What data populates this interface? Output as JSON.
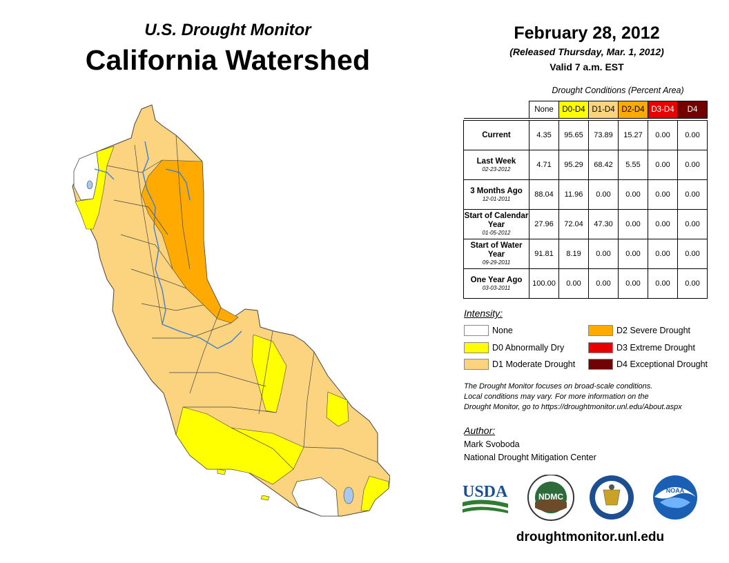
{
  "header": {
    "subtitle": "U.S. Drought Monitor",
    "title": "California Watershed",
    "date": "February 28, 2012",
    "released": "(Released Thursday, Mar. 1, 2012)",
    "valid": "Valid 7 a.m. EST"
  },
  "table": {
    "title": "Drought Conditions (Percent Area)",
    "columns": [
      "None",
      "D0-D4",
      "D1-D4",
      "D2-D4",
      "D3-D4",
      "D4"
    ],
    "column_colors": [
      "#ffffff",
      "#ffff00",
      "#fcd37f",
      "#ffaa00",
      "#e60000",
      "#730000"
    ],
    "column_text_colors": [
      "#000000",
      "#000000",
      "#000000",
      "#000000",
      "#ffffff",
      "#ffffff"
    ],
    "rows": [
      {
        "label": "Current",
        "date": "",
        "values": [
          "4.35",
          "95.65",
          "73.89",
          "15.27",
          "0.00",
          "0.00"
        ]
      },
      {
        "label": "Last Week",
        "date": "02-23-2012",
        "values": [
          "4.71",
          "95.29",
          "68.42",
          "5.55",
          "0.00",
          "0.00"
        ]
      },
      {
        "label": "3 Months Ago",
        "date": "12-01-2011",
        "values": [
          "88.04",
          "11.96",
          "0.00",
          "0.00",
          "0.00",
          "0.00"
        ]
      },
      {
        "label": "Start of Calendar Year",
        "date": "01-05-2012",
        "values": [
          "27.96",
          "72.04",
          "47.30",
          "0.00",
          "0.00",
          "0.00"
        ]
      },
      {
        "label": "Start of Water Year",
        "date": "09-29-2011",
        "values": [
          "91.81",
          "8.19",
          "0.00",
          "0.00",
          "0.00",
          "0.00"
        ]
      },
      {
        "label": "One Year Ago",
        "date": "03-03-2011",
        "values": [
          "100.00",
          "0.00",
          "0.00",
          "0.00",
          "0.00",
          "0.00"
        ]
      }
    ]
  },
  "legend": {
    "title": "Intensity:",
    "items": [
      {
        "label": "None",
        "color": "#ffffff"
      },
      {
        "label": "D0 Abnormally Dry",
        "color": "#ffff00"
      },
      {
        "label": "D1 Moderate Drought",
        "color": "#fcd37f"
      },
      {
        "label": "D2 Severe Drought",
        "color": "#ffaa00"
      },
      {
        "label": "D3 Extreme Drought",
        "color": "#e60000"
      },
      {
        "label": "D4 Exceptional Drought",
        "color": "#730000"
      }
    ]
  },
  "note": {
    "line1": "The Drought Monitor focuses on broad-scale conditions.",
    "line2": "Local conditions may vary. For more information on the",
    "line3": "Drought Monitor, go to https://droughtmonitor.unl.edu/About.aspx"
  },
  "author": {
    "heading": "Author:",
    "name": "Mark Svoboda",
    "org": "National Drought Mitigation Center"
  },
  "logos": {
    "usda": "USDA",
    "ndmc": "NDMC",
    "noaa": "NOAA"
  },
  "footer": {
    "url": "droughtmonitor.unl.edu"
  }
}
